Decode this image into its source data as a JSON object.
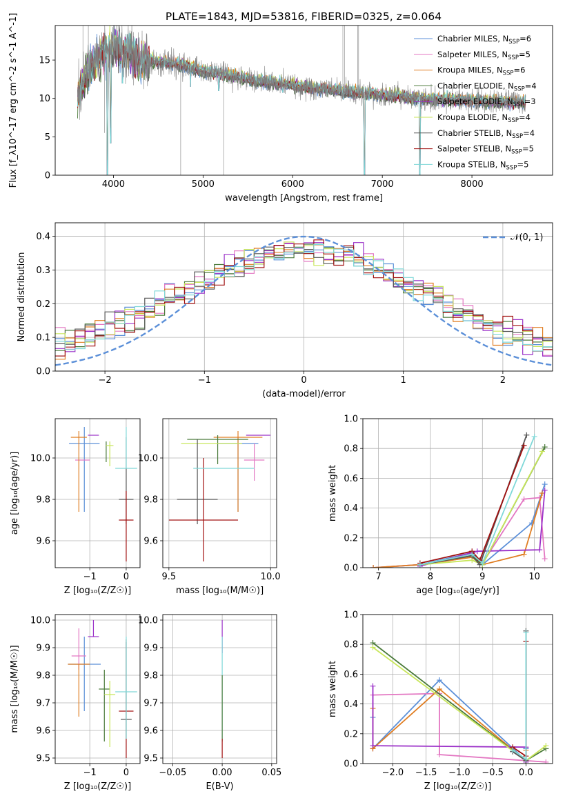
{
  "title": "PLATE=1843, MJD=53816, FIBERID=0325, z=0.064",
  "colors": {
    "chabrier_miles": "#5b8fd8",
    "salpeter_miles": "#e377c2",
    "kroupa_miles": "#e07d21",
    "chabrier_elodie": "#4a7a3a",
    "salpeter_elodie": "#9b30c8",
    "kroupa_elodie": "#c8e65a",
    "chabrier_stelib": "#555555",
    "salpeter_stelib": "#a01010",
    "kroupa_stelib": "#7fd8d8",
    "data": "#808080",
    "normal": "#5b8fd8"
  },
  "chart_data": [
    {
      "id": "spectrum",
      "type": "line",
      "xlabel": "wavelength [Angstrom, rest frame]",
      "ylabel": "Flux [f_λ10^-17 erg cm^-2 s^-1 A^-1]",
      "xlim": [
        3350,
        8900
      ],
      "ylim": [
        0,
        19.5
      ],
      "xticks": [
        "4000",
        "5000",
        "6000",
        "7000",
        "8000"
      ],
      "yticks": [
        "0",
        "5",
        "10",
        "15"
      ],
      "legend": [
        {
          "key": "chabrier_miles",
          "label": "Chabrier MILES, N",
          "sub": "SSP",
          "suffix": "=6"
        },
        {
          "key": "salpeter_miles",
          "label": "Salpeter MILES, N",
          "sub": "SSP",
          "suffix": "=5"
        },
        {
          "key": "kroupa_miles",
          "label": "Kroupa MILES, N",
          "sub": "SSP",
          "suffix": "=6"
        },
        {
          "key": "chabrier_elodie",
          "label": "Chabrier ELODIE, N",
          "sub": "SSP",
          "suffix": "=4"
        },
        {
          "key": "salpeter_elodie",
          "label": "Salpeter ELODIE, N",
          "sub": "SSP",
          "suffix": "=3"
        },
        {
          "key": "kroupa_elodie",
          "label": "Kroupa ELODIE, N",
          "sub": "SSP",
          "suffix": "=4"
        },
        {
          "key": "chabrier_stelib",
          "label": "Chabrier STELIB, N",
          "sub": "SSP",
          "suffix": "=4"
        },
        {
          "key": "salpeter_stelib",
          "label": "Salpeter STELIB, N",
          "sub": "SSP",
          "suffix": "=5"
        },
        {
          "key": "kroupa_stelib",
          "label": "Kroupa STELIB, N",
          "sub": "SSP",
          "suffix": "=5"
        }
      ],
      "continuum": [
        [
          3600,
          10.5
        ],
        [
          3700,
          13.5
        ],
        [
          3800,
          15.0
        ],
        [
          3900,
          16.0
        ],
        [
          4000,
          16.8
        ],
        [
          4100,
          16.5
        ],
        [
          4300,
          15.2
        ],
        [
          4500,
          14.8
        ],
        [
          4800,
          14.3
        ],
        [
          5000,
          13.6
        ],
        [
          5300,
          13.0
        ],
        [
          5600,
          12.3
        ],
        [
          5900,
          11.9
        ],
        [
          6200,
          11.4
        ],
        [
          6500,
          11.0
        ],
        [
          6800,
          10.7
        ],
        [
          7100,
          10.4
        ],
        [
          7400,
          10.0
        ],
        [
          7800,
          9.8
        ],
        [
          8200,
          9.6
        ],
        [
          8600,
          9.5
        ]
      ],
      "model_lines": [
        [
          3933,
          0.0
        ],
        [
          3969,
          4.2
        ],
        [
          4102,
          12.0
        ],
        [
          4300,
          12.6
        ],
        [
          4861,
          11.5
        ],
        [
          5175,
          11.0
        ],
        [
          5890,
          10.8
        ],
        [
          6563,
          9.8
        ],
        [
          6800,
          0.0
        ],
        [
          7420,
          0.0
        ]
      ],
      "data_spikes": [
        [
          3660,
          19.5
        ],
        [
          3720,
          19.5
        ],
        [
          3900,
          5.5
        ],
        [
          4000,
          19.5
        ],
        [
          4750,
          0.0
        ],
        [
          5230,
          0.0
        ],
        [
          6560,
          19.5
        ],
        [
          6580,
          19.5
        ],
        [
          6725,
          19.5
        ],
        [
          6735,
          19.5
        ]
      ]
    },
    {
      "id": "residuals",
      "type": "step",
      "xlabel": "(data-model)/error",
      "ylabel": "Normed distribution",
      "xlim": [
        -2.5,
        2.5
      ],
      "ylim": [
        0,
        0.44
      ],
      "xticks": [
        "−2",
        "−1",
        "0",
        "1",
        "2"
      ],
      "yticks": [
        "0.0",
        "0.1",
        "0.2",
        "0.3",
        "0.4"
      ],
      "legend_label": "𝒩(0, 1)",
      "bin_width": 0.1
    },
    {
      "id": "age_vs_Z",
      "type": "errorbar",
      "xlabel": "Z [log₁₀(Z/Z☉)]",
      "ylabel": "age  [log₁₀(age/yr)]",
      "xlim": [
        -1.95,
        0.38
      ],
      "ylim": [
        9.47,
        10.19
      ],
      "xticks": [
        "−1",
        "0"
      ],
      "yticks": [
        "9.6",
        "9.8",
        "10.0"
      ],
      "points": [
        {
          "key": "chabrier_miles",
          "x": -1.15,
          "y": 10.07,
          "xerr": 0.42,
          "yerr_lo": 0.33,
          "yerr_hi": 0.08
        },
        {
          "key": "salpeter_miles",
          "x": -1.2,
          "y": 9.99,
          "xerr": 0.2,
          "yerr_lo": 0.0,
          "yerr_hi": 0.0
        },
        {
          "key": "kroupa_miles",
          "x": -1.3,
          "y": 10.1,
          "xerr": 0.22,
          "yerr_lo": 0.36,
          "yerr_hi": 0.03
        },
        {
          "key": "chabrier_elodie",
          "x": -0.55,
          "y": 10.08,
          "xerr": 0.0,
          "yerr_lo": 0.1,
          "yerr_hi": 0.0
        },
        {
          "key": "salpeter_elodie",
          "x": -0.9,
          "y": 10.11,
          "xerr": 0.15,
          "yerr_lo": 0.0,
          "yerr_hi": 0.0
        },
        {
          "key": "kroupa_elodie",
          "x": -0.45,
          "y": 10.06,
          "xerr": 0.1,
          "yerr_lo": 0.1,
          "yerr_hi": 0.02
        },
        {
          "key": "chabrier_stelib",
          "x": 0.0,
          "y": 9.8,
          "xerr": 0.2,
          "yerr_lo": 0.12,
          "yerr_hi": 0.3
        },
        {
          "key": "salpeter_stelib",
          "x": 0.0,
          "y": 9.7,
          "xerr": 0.2,
          "yerr_lo": 0.2,
          "yerr_hi": 0.14
        },
        {
          "key": "kroupa_stelib",
          "x": 0.0,
          "y": 9.95,
          "xerr": 0.3,
          "yerr_lo": 0.0,
          "yerr_hi": 0.2
        }
      ]
    },
    {
      "id": "age_vs_mass",
      "type": "errorbar",
      "xlabel": "mass [log₁₀(M/M☉)]",
      "ylabel": "",
      "xlim": [
        9.47,
        10.03
      ],
      "ylim": [
        9.47,
        10.19
      ],
      "xticks": [
        "9.5",
        "10.0"
      ],
      "yticks": [
        "9.6",
        "9.8",
        "10.0"
      ],
      "points": [
        {
          "key": "chabrier_miles",
          "x": 9.84,
          "y": 10.07,
          "xerr": 0.1,
          "yerr_lo": 0.33,
          "yerr_hi": 0.03
        },
        {
          "key": "salpeter_miles",
          "x": 9.92,
          "y": 9.99,
          "xerr": 0.05,
          "yerr_lo": 0.1,
          "yerr_hi": 0.08
        },
        {
          "key": "kroupa_miles",
          "x": 9.84,
          "y": 10.1,
          "xerr": 0.12,
          "yerr_lo": 0.36,
          "yerr_hi": 0.03
        },
        {
          "key": "chabrier_elodie",
          "x": 9.74,
          "y": 10.09,
          "xerr": 0.15,
          "yerr_lo": 0.12,
          "yerr_hi": 0.02
        },
        {
          "key": "salpeter_elodie",
          "x": 9.94,
          "y": 10.11,
          "xerr": 0.06,
          "yerr_lo": 0.0,
          "yerr_hi": 0.0
        },
        {
          "key": "kroupa_elodie",
          "x": 9.71,
          "y": 10.07,
          "xerr": 0.15,
          "yerr_lo": 0.0,
          "yerr_hi": 0.0
        },
        {
          "key": "chabrier_stelib",
          "x": 9.64,
          "y": 9.8,
          "xerr": 0.1,
          "yerr_lo": 0.12,
          "yerr_hi": 0.29
        },
        {
          "key": "salpeter_stelib",
          "x": 9.67,
          "y": 9.7,
          "xerr": 0.17,
          "yerr_lo": 0.2,
          "yerr_hi": 0.3
        },
        {
          "key": "kroupa_stelib",
          "x": 9.77,
          "y": 9.95,
          "xerr": 0.15,
          "yerr_lo": 0.0,
          "yerr_hi": 0.0
        }
      ]
    },
    {
      "id": "mass_weight_vs_age",
      "type": "line",
      "xlabel": "age  [log₁₀(age/yr)]",
      "ylabel": "mass weight",
      "xlim": [
        6.7,
        10.35
      ],
      "ylim": [
        0,
        1
      ],
      "xticks": [
        "7",
        "8",
        "9",
        "10"
      ],
      "yticks": [
        "0.0",
        "0.2",
        "0.4",
        "0.6",
        "0.8",
        "1.0"
      ],
      "series": [
        {
          "key": "chabrier_miles",
          "x": [
            6.9,
            7.8,
            8.8,
            9.0,
            9.95,
            10.2
          ],
          "y": [
            0.0,
            0.02,
            0.1,
            0.02,
            0.3,
            0.56
          ]
        },
        {
          "key": "salpeter_miles",
          "x": [
            6.9,
            7.8,
            8.8,
            9.0,
            9.8,
            10.1,
            10.2
          ],
          "y": [
            0.0,
            0.02,
            0.07,
            0.03,
            0.46,
            0.47,
            0.06
          ]
        },
        {
          "key": "kroupa_miles",
          "x": [
            6.9,
            7.8,
            8.8,
            9.0,
            9.8,
            10.15
          ],
          "y": [
            0.0,
            0.02,
            0.07,
            0.02,
            0.09,
            0.5
          ]
        },
        {
          "key": "chabrier_elodie",
          "x": [
            7.8,
            8.8,
            9.0,
            10.2
          ],
          "y": [
            0.02,
            0.08,
            0.02,
            0.81
          ]
        },
        {
          "key": "salpeter_elodie",
          "x": [
            7.8,
            8.9,
            10.1,
            10.2
          ],
          "y": [
            0.01,
            0.11,
            0.12,
            0.52
          ]
        },
        {
          "key": "kroupa_elodie",
          "x": [
            7.8,
            8.8,
            9.0,
            10.15
          ],
          "y": [
            0.02,
            0.05,
            0.02,
            0.78
          ]
        },
        {
          "key": "chabrier_stelib",
          "x": [
            7.8,
            8.8,
            8.95,
            9.85
          ],
          "y": [
            0.02,
            0.08,
            0.02,
            0.89
          ]
        },
        {
          "key": "salpeter_stelib",
          "x": [
            7.8,
            8.8,
            8.95,
            9.8
          ],
          "y": [
            0.03,
            0.11,
            0.05,
            0.82
          ]
        },
        {
          "key": "kroupa_stelib",
          "x": [
            7.8,
            8.8,
            9.0,
            10.0
          ],
          "y": [
            0.02,
            0.09,
            0.03,
            0.88
          ]
        }
      ]
    },
    {
      "id": "mass_vs_Z",
      "type": "errorbar",
      "xlabel": "Z [log₁₀(Z/Z☉)]",
      "ylabel": "mass [log₁₀(M/M☉)]",
      "xlim": [
        -1.95,
        0.38
      ],
      "ylim": [
        9.48,
        10.02
      ],
      "xticks": [
        "−1",
        "0"
      ],
      "yticks": [
        "9.5",
        "9.6",
        "9.7",
        "9.8",
        "9.9",
        "10.0"
      ],
      "points": [
        {
          "key": "chabrier_miles",
          "x": -1.15,
          "y": 9.84,
          "xerr": 0.45,
          "yerr_lo": 0.17,
          "yerr_hi": 0.1
        },
        {
          "key": "salpeter_miles",
          "x": -1.3,
          "y": 9.87,
          "xerr": 0.2,
          "yerr_lo": 0.05,
          "yerr_hi": 0.1
        },
        {
          "key": "kroupa_miles",
          "x": -1.3,
          "y": 9.84,
          "xerr": 0.3,
          "yerr_lo": 0.19,
          "yerr_hi": 0.0
        },
        {
          "key": "chabrier_elodie",
          "x": -0.6,
          "y": 9.75,
          "xerr": 0.15,
          "yerr_lo": 0.19,
          "yerr_hi": 0.07
        },
        {
          "key": "salpeter_elodie",
          "x": -0.9,
          "y": 9.94,
          "xerr": 0.15,
          "yerr_lo": 0.0,
          "yerr_hi": 0.06
        },
        {
          "key": "kroupa_elodie",
          "x": -0.45,
          "y": 9.73,
          "xerr": 0.15,
          "yerr_lo": 0.19,
          "yerr_hi": 0.05
        },
        {
          "key": "chabrier_stelib",
          "x": 0.0,
          "y": 9.64,
          "xerr": 0.15,
          "yerr_lo": 0.07,
          "yerr_hi": 0.28
        },
        {
          "key": "salpeter_stelib",
          "x": 0.0,
          "y": 9.67,
          "xerr": 0.2,
          "yerr_lo": 0.17,
          "yerr_hi": 0.26
        },
        {
          "key": "kroupa_stelib",
          "x": 0.0,
          "y": 9.74,
          "xerr": 0.3,
          "yerr_lo": 0.17,
          "yerr_hi": 0.2
        }
      ]
    },
    {
      "id": "mass_vs_EBV",
      "type": "errorbar",
      "xlabel": "E(B-V)",
      "ylabel": "",
      "xlim": [
        -0.06,
        0.055
      ],
      "ylim": [
        9.48,
        10.02
      ],
      "xticks": [
        "−0.05",
        "0.00",
        "0.05"
      ],
      "yticks": [
        "9.5",
        "9.6",
        "9.7",
        "9.8",
        "9.9",
        "10.0"
      ],
      "points": [
        {
          "key": "salpeter_elodie",
          "x": 0.0,
          "y": 9.94,
          "xerr": 0.0,
          "yerr_lo": 0.06,
          "yerr_hi": 0.06
        },
        {
          "key": "kroupa_stelib",
          "x": 0.0,
          "y": 9.75,
          "xerr": 0.0,
          "yerr_lo": 0.18,
          "yerr_hi": 0.19
        },
        {
          "key": "chabrier_elodie",
          "x": 0.0,
          "y": 9.75,
          "xerr": 0.0,
          "yerr_lo": 0.19,
          "yerr_hi": 0.05
        },
        {
          "key": "salpeter_stelib",
          "x": 0.0,
          "y": 9.57,
          "xerr": 0.0,
          "yerr_lo": 0.07,
          "yerr_hi": 0.0
        }
      ]
    },
    {
      "id": "mass_weight_vs_Z",
      "type": "line",
      "xlabel": "Z [log₁₀(Z/Z☉)]",
      "ylabel": "mass weight",
      "xlim": [
        -2.45,
        0.4
      ],
      "ylim": [
        0,
        1
      ],
      "xticks": [
        "−2.0",
        "−1.5",
        "−1.0",
        "−0.5",
        "0.0"
      ],
      "yticks": [
        "0.0",
        "0.2",
        "0.4",
        "0.6",
        "0.8",
        "1.0"
      ],
      "series": [
        {
          "key": "chabrier_miles",
          "x": [
            -2.3,
            -2.3,
            -1.3,
            0.0,
            0.0
          ],
          "y": [
            0.31,
            0.1,
            0.56,
            0.02,
            0.1
          ]
        },
        {
          "key": "salpeter_miles",
          "x": [
            -2.3,
            -2.3,
            -1.3,
            -1.3,
            0.3
          ],
          "y": [
            0.1,
            0.46,
            0.47,
            0.06,
            0.01
          ]
        },
        {
          "key": "kroupa_miles",
          "x": [
            -2.3,
            -2.3,
            -1.3,
            0.0,
            0.0
          ],
          "y": [
            0.37,
            0.1,
            0.5,
            0.02,
            0.09
          ]
        },
        {
          "key": "chabrier_elodie",
          "x": [
            -2.3,
            0.0,
            0.3
          ],
          "y": [
            0.81,
            0.02,
            0.1
          ]
        },
        {
          "key": "salpeter_elodie",
          "x": [
            -2.3,
            -2.3,
            0.0,
            0.0
          ],
          "y": [
            0.52,
            0.12,
            0.11,
            0.01
          ]
        },
        {
          "key": "kroupa_elodie",
          "x": [
            -2.3,
            0.0,
            0.3
          ],
          "y": [
            0.78,
            0.02,
            0.12
          ]
        },
        {
          "key": "chabrier_stelib",
          "x": [
            -0.2,
            0.0,
            0.0
          ],
          "y": [
            0.08,
            0.02,
            0.89
          ]
        },
        {
          "key": "salpeter_stelib",
          "x": [
            -0.2,
            0.0,
            0.0
          ],
          "y": [
            0.11,
            0.05,
            0.82
          ]
        },
        {
          "key": "kroupa_stelib",
          "x": [
            -0.2,
            0.0,
            0.0
          ],
          "y": [
            0.09,
            0.03,
            0.88
          ]
        }
      ]
    }
  ]
}
